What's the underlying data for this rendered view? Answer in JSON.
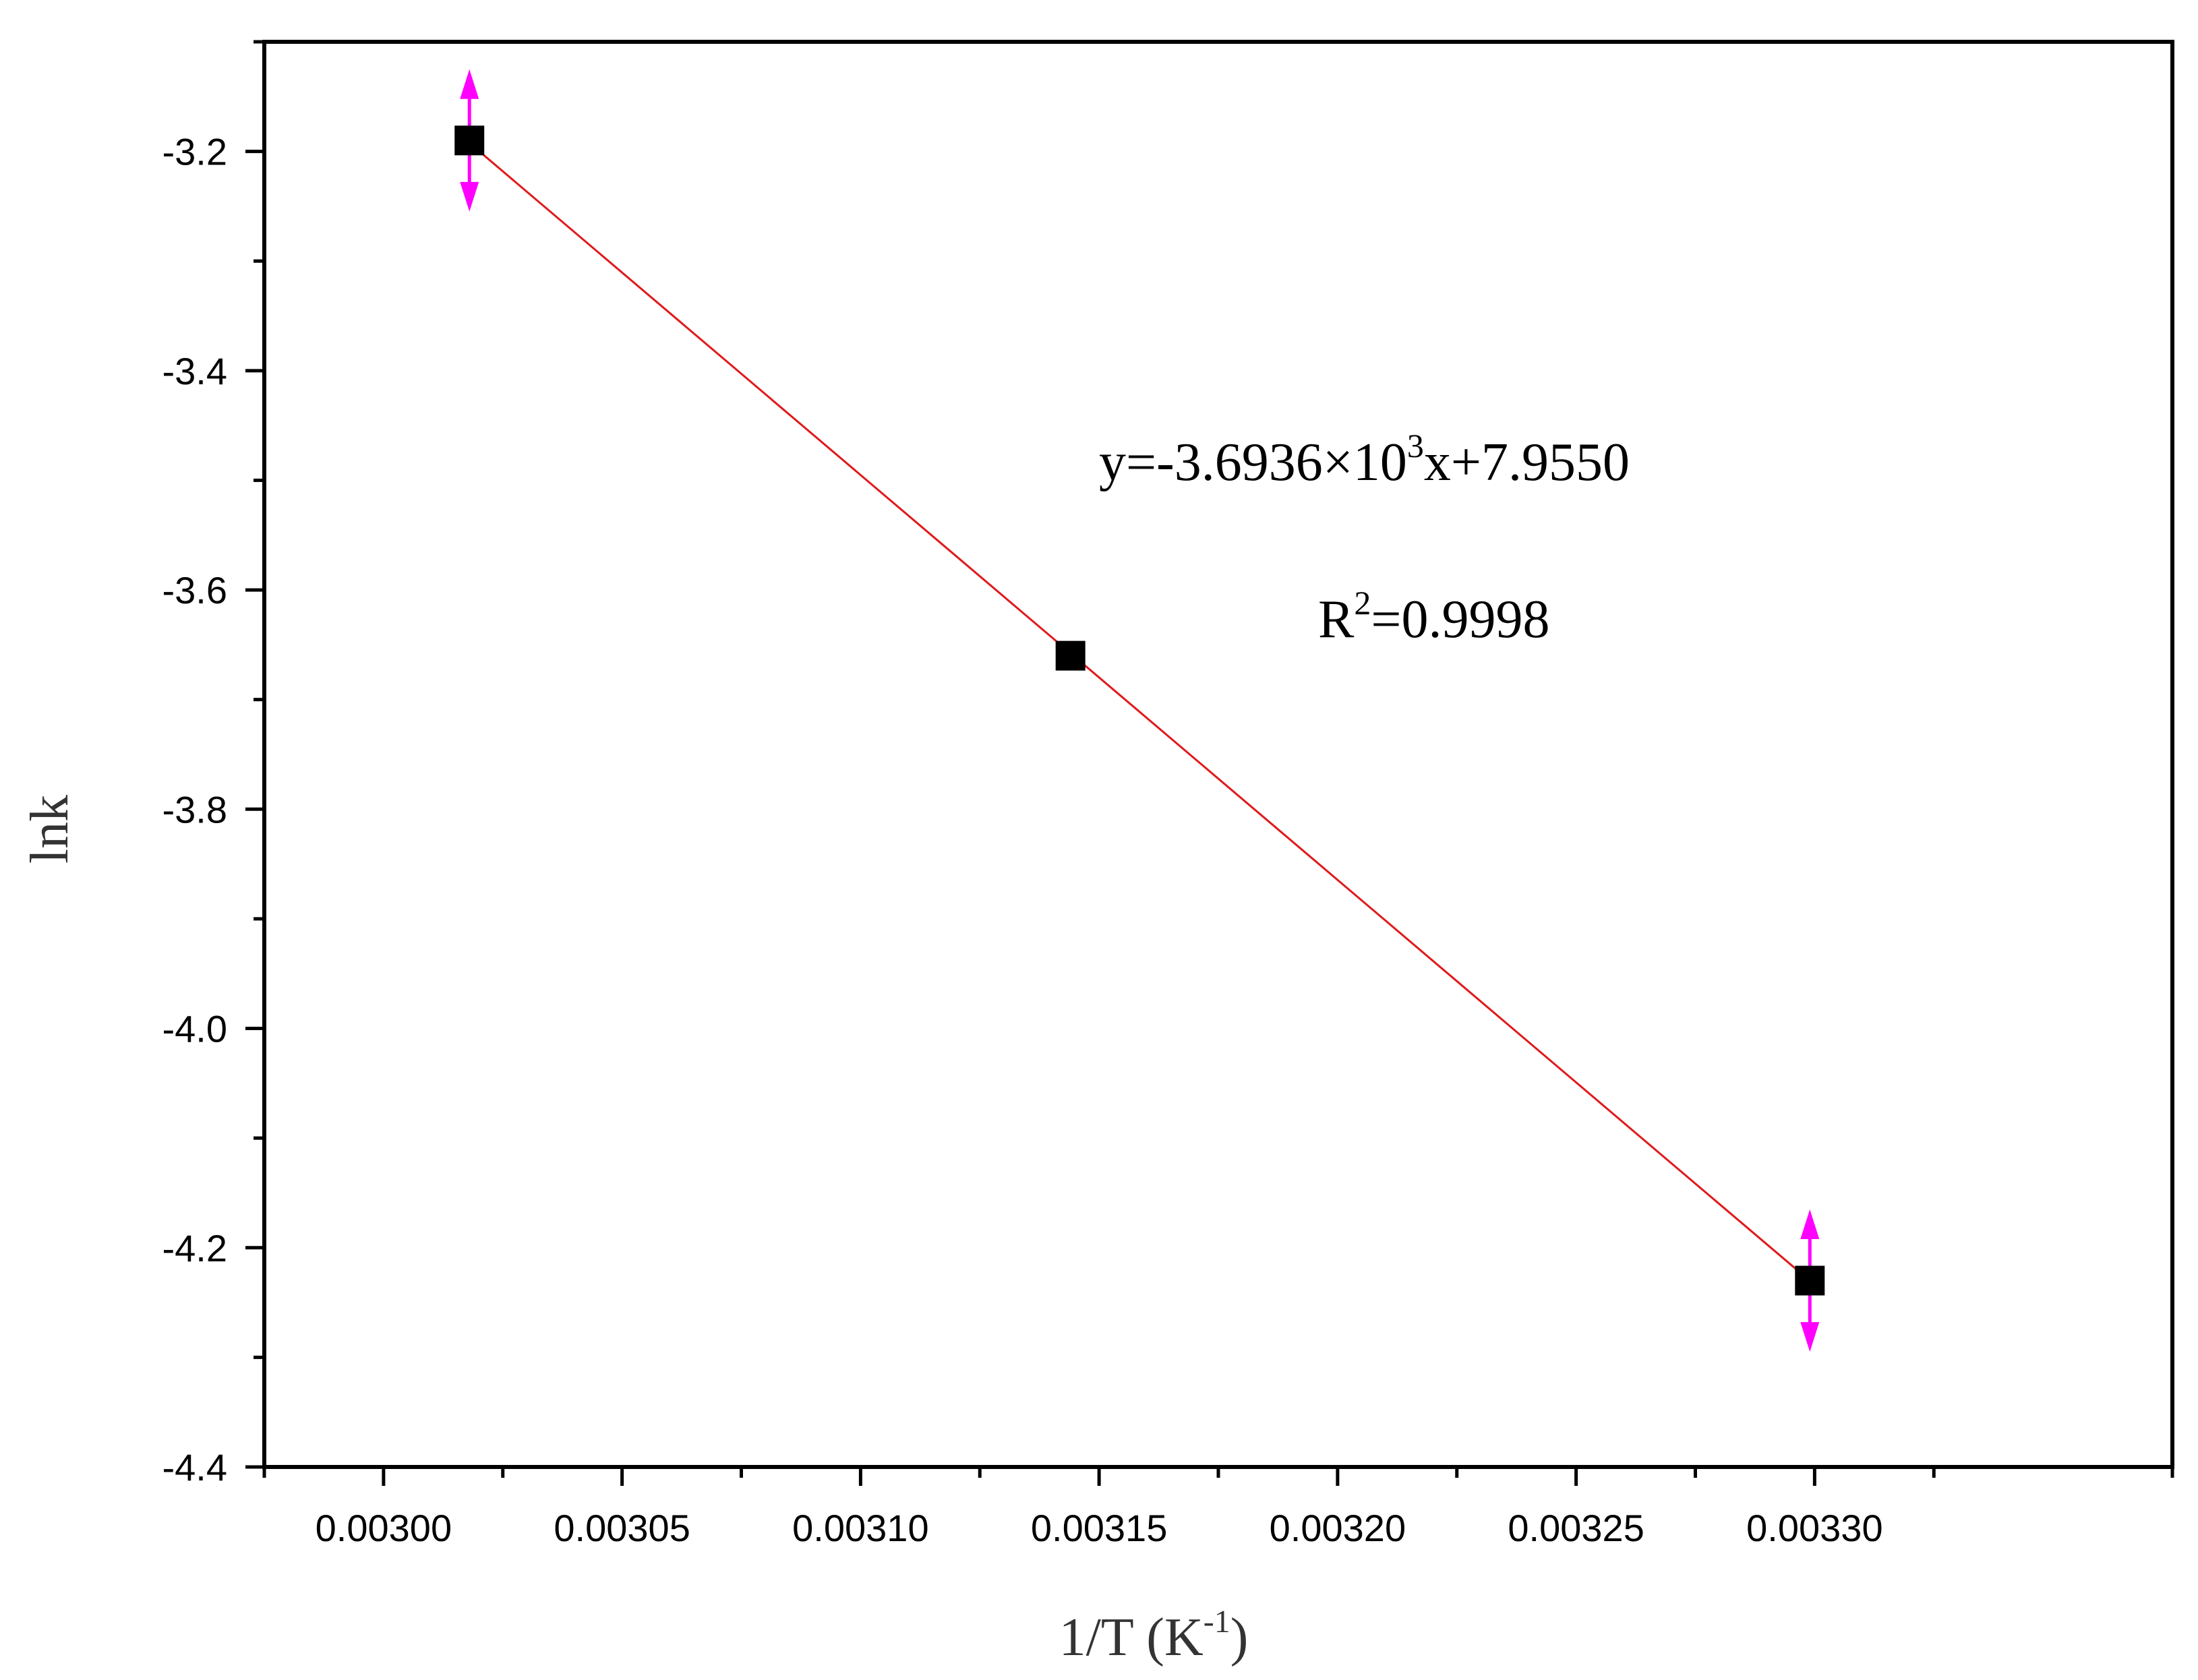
{
  "chart_data": {
    "type": "scatter",
    "xlabel": "1/T (K",
    "xlabel_sup": "-1",
    "xlabel_end": ")",
    "ylabel": "lnk",
    "xlim": [
      0.002975,
      0.003375
    ],
    "ylim": [
      -4.4,
      -3.1
    ],
    "x_ticks": [
      0.003,
      0.00305,
      0.0031,
      0.00315,
      0.0032,
      0.00325,
      0.0033
    ],
    "x_tick_labels": [
      "0.00300",
      "0.00305",
      "0.00310",
      "0.00315",
      "0.00320",
      "0.00325",
      "0.00330"
    ],
    "y_ticks": [
      -3.2,
      -3.4,
      -3.6,
      -3.8,
      -4.0,
      -4.2,
      -4.4
    ],
    "y_tick_labels": [
      "-3.2",
      "-3.4",
      "-3.6",
      "-3.8",
      "-4.0",
      "-4.2",
      "-4.4"
    ],
    "grid": false,
    "points": [
      {
        "x": 0.003018,
        "y": -3.19,
        "err": 0.06
      },
      {
        "x": 0.003144,
        "y": -3.66,
        "err": 0
      },
      {
        "x": 0.003299,
        "y": -4.23,
        "err": 0.06
      }
    ],
    "fit_line": {
      "x": [
        0.003018,
        0.003299
      ],
      "slope": -3693.6,
      "intercept": 7.955
    },
    "equation": {
      "prefix": "y=-3.6936×10",
      "sup": "3",
      "suffix": "x+7.9550"
    },
    "r_squared": {
      "prefix": "R",
      "sup": "2",
      "suffix": "=0.9998"
    },
    "colors": {
      "marker": "#000000",
      "fit_line": "#e0191b",
      "error_bar": "#ff00ff",
      "axis": "#000000"
    }
  }
}
